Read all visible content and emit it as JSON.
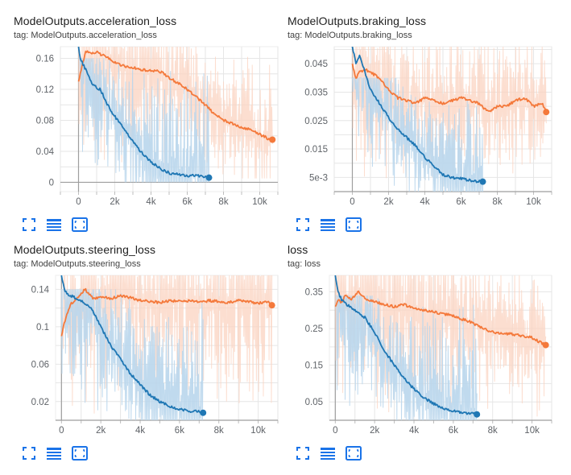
{
  "colors": {
    "orange": "#f4793b",
    "orange_faint": "#fbd3c0",
    "blue": "#1f77b4",
    "blue_faint": "#b9d6ec",
    "tool_icon": "#1a73e8",
    "grid": "#e6e6e6",
    "axis": "#9e9e9e"
  },
  "toolbar_icons": [
    "fullscreen-icon",
    "data-table-icon",
    "fit-domain-icon"
  ],
  "chart_data": [
    {
      "type": "line",
      "title": "ModelOutputs.acceleration_loss",
      "tag": "tag: ModelOutputs.acceleration_loss",
      "xlim": [
        -1000,
        11000
      ],
      "ylim": [
        -0.012,
        0.175
      ],
      "xticks": [
        0,
        2000,
        4000,
        6000,
        8000,
        10000
      ],
      "xtick_labels": [
        "0",
        "2k",
        "4k",
        "6k",
        "8k",
        "10k"
      ],
      "yticks": [
        0,
        0.04,
        0.08,
        0.12,
        0.16
      ],
      "ytick_labels": [
        "0",
        "0.04",
        "0.08",
        "0.12",
        "0.16"
      ],
      "grid": true,
      "series": [
        {
          "color": "orange",
          "x": [
            0,
            200,
            400,
            700,
            1000,
            1500,
            2000,
            2500,
            3000,
            3500,
            4000,
            4500,
            5000,
            5500,
            6000,
            6500,
            7000,
            7500,
            8000,
            8500,
            9000,
            9500,
            10000,
            10500,
            10700
          ],
          "y": [
            0.13,
            0.15,
            0.17,
            0.165,
            0.168,
            0.162,
            0.155,
            0.15,
            0.148,
            0.145,
            0.144,
            0.143,
            0.135,
            0.128,
            0.12,
            0.11,
            0.1,
            0.088,
            0.08,
            0.076,
            0.07,
            0.068,
            0.062,
            0.056,
            0.055
          ],
          "band": [
            0.005,
            0.175
          ]
        },
        {
          "color": "blue",
          "x": [
            0,
            100,
            300,
            500,
            800,
            1200,
            1600,
            2000,
            2500,
            3000,
            3500,
            4000,
            4500,
            5000,
            5500,
            6000,
            6500,
            7000,
            7200
          ],
          "y": [
            0.175,
            0.16,
            0.15,
            0.14,
            0.125,
            0.12,
            0.1,
            0.085,
            0.07,
            0.052,
            0.038,
            0.026,
            0.018,
            0.012,
            0.01,
            0.008,
            0.009,
            0.007,
            0.006
          ],
          "band": [
            0,
            0.16
          ]
        }
      ]
    },
    {
      "type": "line",
      "title": "ModelOutputs.braking_loss",
      "tag": "tag: ModelOutputs.braking_loss",
      "xlim": [
        -1000,
        11000
      ],
      "ylim": [
        0.0,
        0.051
      ],
      "xticks": [
        0,
        2000,
        4000,
        6000,
        8000,
        10000
      ],
      "xtick_labels": [
        "0",
        "2k",
        "4k",
        "6k",
        "8k",
        "10k"
      ],
      "yticks": [
        0.005,
        0.015,
        0.025,
        0.035,
        0.045
      ],
      "ytick_labels": [
        "5e-3",
        "0.015",
        "0.025",
        "0.035",
        "0.045"
      ],
      "grid": true,
      "series": [
        {
          "color": "orange",
          "x": [
            0,
            200,
            400,
            700,
            1000,
            1500,
            2000,
            2500,
            3000,
            3500,
            4000,
            4500,
            5000,
            5500,
            6000,
            6500,
            7000,
            7500,
            8000,
            8500,
            9000,
            9500,
            10000,
            10500,
            10700
          ],
          "y": [
            0.045,
            0.04,
            0.042,
            0.043,
            0.042,
            0.04,
            0.036,
            0.033,
            0.032,
            0.031,
            0.033,
            0.032,
            0.031,
            0.032,
            0.033,
            0.032,
            0.031,
            0.028,
            0.03,
            0.03,
            0.032,
            0.033,
            0.03,
            0.031,
            0.028
          ],
          "band": [
            0.0,
            0.051
          ]
        },
        {
          "color": "blue",
          "x": [
            0,
            200,
            400,
            700,
            1000,
            1500,
            2000,
            2500,
            3000,
            3500,
            4000,
            4500,
            5000,
            5500,
            6000,
            6500,
            7000,
            7200
          ],
          "y": [
            0.051,
            0.045,
            0.048,
            0.042,
            0.036,
            0.031,
            0.026,
            0.022,
            0.019,
            0.016,
            0.012,
            0.009,
            0.006,
            0.005,
            0.0045,
            0.004,
            0.0035,
            0.0035
          ],
          "band": [
            0.0,
            0.04
          ]
        }
      ]
    },
    {
      "type": "line",
      "title": "ModelOutputs.steering_loss",
      "tag": "tag: ModelOutputs.steering_loss",
      "xlim": [
        -300,
        11000
      ],
      "ylim": [
        0.0,
        0.155
      ],
      "xticks": [
        0,
        2000,
        4000,
        6000,
        8000,
        10000
      ],
      "xtick_labels": [
        "0",
        "2k",
        "4k",
        "6k",
        "8k",
        "10k"
      ],
      "yticks": [
        0.02,
        0.06,
        0.1,
        0.14
      ],
      "ytick_labels": [
        "0.02",
        "0.06",
        "0.1",
        "0.14"
      ],
      "grid": true,
      "series": [
        {
          "color": "orange",
          "x": [
            0,
            150,
            300,
            500,
            800,
            1200,
            1600,
            2000,
            2500,
            3000,
            3500,
            4000,
            4500,
            5000,
            5500,
            6000,
            6500,
            7000,
            7500,
            8000,
            8500,
            9000,
            9500,
            10000,
            10500,
            10700
          ],
          "y": [
            0.09,
            0.105,
            0.115,
            0.125,
            0.13,
            0.14,
            0.13,
            0.132,
            0.13,
            0.133,
            0.131,
            0.128,
            0.127,
            0.126,
            0.128,
            0.127,
            0.128,
            0.126,
            0.128,
            0.127,
            0.126,
            0.128,
            0.127,
            0.125,
            0.127,
            0.123
          ],
          "band": [
            0.0,
            0.155
          ]
        },
        {
          "color": "blue",
          "x": [
            0,
            150,
            300,
            600,
            1000,
            1500,
            2000,
            2500,
            3000,
            3500,
            4000,
            4500,
            5000,
            5500,
            6000,
            6500,
            7000,
            7200
          ],
          "y": [
            0.155,
            0.14,
            0.135,
            0.132,
            0.128,
            0.12,
            0.1,
            0.08,
            0.065,
            0.05,
            0.038,
            0.027,
            0.02,
            0.015,
            0.012,
            0.01,
            0.009,
            0.008
          ],
          "band": [
            0.0,
            0.14
          ]
        }
      ]
    },
    {
      "type": "line",
      "title": "loss",
      "tag": "tag: loss",
      "xlim": [
        -300,
        11000
      ],
      "ylim": [
        0.0,
        0.395
      ],
      "xticks": [
        0,
        2000,
        4000,
        6000,
        8000,
        10000
      ],
      "xtick_labels": [
        "0",
        "2k",
        "4k",
        "6k",
        "8k",
        "10k"
      ],
      "yticks": [
        0.05,
        0.15,
        0.25,
        0.35
      ],
      "ytick_labels": [
        "0.05",
        "0.15",
        "0.25",
        "0.35"
      ],
      "grid": true,
      "series": [
        {
          "color": "orange",
          "x": [
            0,
            150,
            300,
            500,
            800,
            1200,
            1600,
            2000,
            2500,
            3000,
            3500,
            4000,
            4500,
            5000,
            5500,
            6000,
            6500,
            7000,
            7500,
            8000,
            8500,
            9000,
            9500,
            10000,
            10500,
            10700
          ],
          "y": [
            0.31,
            0.33,
            0.32,
            0.34,
            0.33,
            0.35,
            0.33,
            0.325,
            0.315,
            0.31,
            0.315,
            0.305,
            0.3,
            0.295,
            0.29,
            0.285,
            0.275,
            0.265,
            0.25,
            0.24,
            0.235,
            0.235,
            0.23,
            0.225,
            0.21,
            0.205
          ],
          "band": [
            0.0,
            0.395
          ]
        },
        {
          "color": "blue",
          "x": [
            0,
            150,
            300,
            600,
            1000,
            1500,
            2000,
            2500,
            3000,
            3500,
            4000,
            4500,
            5000,
            5500,
            6000,
            6500,
            7000,
            7200
          ],
          "y": [
            0.395,
            0.35,
            0.33,
            0.315,
            0.3,
            0.28,
            0.24,
            0.19,
            0.15,
            0.115,
            0.085,
            0.062,
            0.045,
            0.033,
            0.025,
            0.02,
            0.018,
            0.016
          ],
          "band": [
            0.0,
            0.34
          ]
        }
      ]
    }
  ]
}
